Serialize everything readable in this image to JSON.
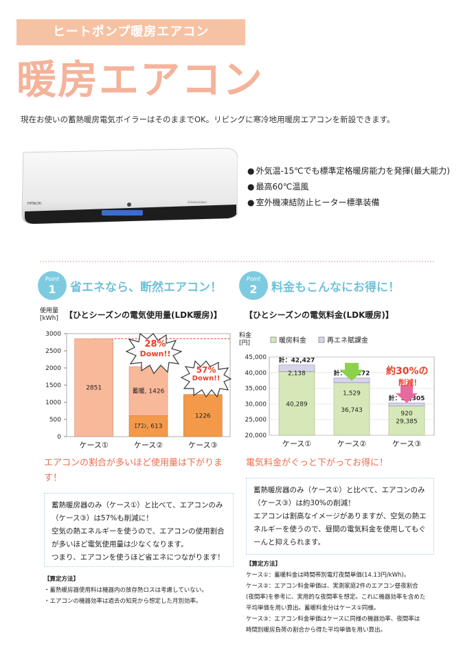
{
  "header": {
    "tag": "ヒートポンプ暖房エアコン",
    "title": "暖房エアコン",
    "intro": "現在お使いの蓄熱暖房電気ボイラーはそのままでOK。リビングに寒冷地用暖房エアコンを新設できます。"
  },
  "product": {
    "features": [
      "外気温-15℃でも標準定格暖房能力を発揮(最大能力)",
      "最高60℃温風",
      "室外機凍結防止ヒーター標準装備"
    ]
  },
  "point1": {
    "badge_label": "Point",
    "badge_num": "1",
    "heading": "省エネなら、断然エアコン！",
    "chart_title": "【ひとシーズンの電気使用量(LDK暖房)】",
    "y_unit": "使用量",
    "y_unit2": "[kWh]",
    "callout1": "28%",
    "callout1b": "Down!!",
    "callout2": "57%",
    "callout2b": "Down!!",
    "summary": "エアコンの割合が多いほど使用量は下がります！",
    "box": [
      "蓄熱暖房器のみ（ケース①）と比べて、エアコンのみ",
      "（ケース③）は57%も削減に！",
      "空気の熱エネルギーを使うので、エアコンの使用割合",
      "が多いほど電気使用量は少なくなります。",
      "つまり、エアコンを使うほど省エネにつながります！"
    ],
    "notes_title": "【算定方法】",
    "notes": [
      "・蓄熱暖房器使用料は機器内の放存熱ロスは考慮していない。",
      "・エアコンの機器効率は過去の知見から想定した月別効率。"
    ]
  },
  "point2": {
    "badge_label": "Point",
    "badge_num": "2",
    "heading": "料金もこんなにお得に！",
    "chart_title": "【ひとシーズンの電気料金(LDK暖房)】",
    "y_unit": "料金",
    "y_unit2": "[円]",
    "callout": "約30%の",
    "callout2": "削減！",
    "summary": "電気料金がぐっと下がってお得に！",
    "box": [
      "蓄熱暖房器のみ（ケース①）と比べて、エアコンのみ",
      "（ケース③）は約30%の削減！",
      "エアコンは割高なイメージがありますが、空気の熱エ",
      "ネルギーを使うので、昼間の電気料金を使用してもぐ",
      "ーんと抑えられます。"
    ],
    "notes_title": "【算定方法】",
    "notes": [
      "ケース①：蓄暖料金は時間帯別電灯夜間単価(14.13円/kWh)。",
      "ケース②：エアコン料金単価は、実測家庭2件のエアコン昼夜割合",
      "(夜間率)を参考に、実用的な夜間率を想定。これに機器効率を含めた",
      "平均単価を用い算出。蓄暖料金分はケース①同様。",
      "ケース③：エアコン料金単価はケースに同様の機器効率、夜間率は",
      "時間別暖房負荷の割合から得た平均単価を用い算出。"
    ]
  },
  "chart_data": [
    {
      "type": "bar",
      "title": "【ひとシーズンの電気使用量(LDK暖房)】",
      "ylabel": "使用量 [kWh]",
      "ylim": [
        0,
        3000
      ],
      "yticks": [
        0,
        500,
        1000,
        1500,
        2000,
        2500,
        3000
      ],
      "categories": [
        "ケース①",
        "ケース②",
        "ケース③"
      ],
      "series": [
        {
          "name": "蓄暖",
          "values": [
            2851,
            1426,
            0
          ]
        },
        {
          "name": "ｴｱｺﾝ",
          "values": [
            0,
            613,
            1226
          ]
        }
      ],
      "bar_labels": [
        "2851",
        "蓄暖, 1426",
        "ｴｱｺﾝ, 613",
        "1226"
      ],
      "colors": {
        "chikudan": "#f8b89a",
        "aircon": "#f39a4a",
        "ref_line": "#e8402a"
      }
    },
    {
      "type": "bar",
      "title": "【ひとシーズンの電気料金(LDK暖房)】",
      "ylabel": "料金 [円]",
      "ylim": [
        20000,
        45000
      ],
      "yticks": [
        20000,
        25000,
        30000,
        35000,
        40000,
        45000
      ],
      "yticklabels": [
        "20,000",
        "25,000",
        "30,000",
        "35,000",
        "40,000",
        "45,000"
      ],
      "categories": [
        "ケース①",
        "ケース②",
        "ケース③"
      ],
      "series": [
        {
          "name": "暖房料金",
          "values": [
            40289,
            36743,
            29385
          ],
          "labels": [
            "40,289",
            "36,743",
            "29,385"
          ]
        },
        {
          "name": "再エネ賦課金",
          "values": [
            2138,
            1529,
            920
          ],
          "labels": [
            "2,138",
            "1,529",
            "920"
          ]
        }
      ],
      "totals": [
        "計：42,427",
        "計：38,272",
        "計：30,305"
      ],
      "colors": {
        "heating": "#d6e8b8",
        "renewable": "#d6d4e8",
        "arrow_green": "#8bd24a",
        "arrow_pink": "#e868a0"
      }
    }
  ]
}
